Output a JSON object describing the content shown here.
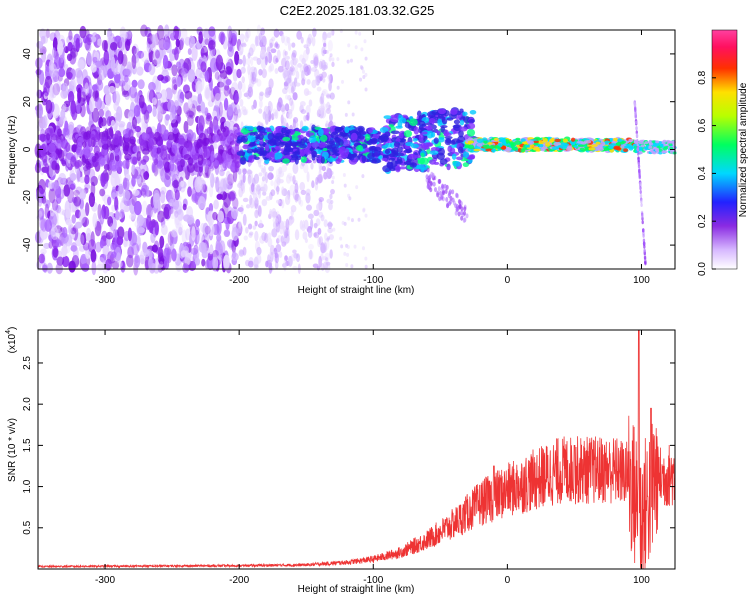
{
  "title": "C2E2.2025.181.03.32.G25",
  "chart_data": [
    {
      "type": "heatmap",
      "xlabel": "Height of straight line (km)",
      "ylabel": "Frequency (Hz)",
      "xlim": [
        -350,
        125
      ],
      "ylim": [
        -50,
        50
      ],
      "x_ticks": [
        -300,
        -200,
        -100,
        0,
        100
      ],
      "y_ticks": [
        -40,
        -20,
        0,
        20,
        40
      ],
      "colorbar": {
        "label": "Normalized spectral amplitude",
        "range": [
          0,
          1
        ],
        "ticks": [
          "0.0",
          "0.2",
          "0.4",
          "0.6",
          "0.8"
        ],
        "colormap": "white-purple-blue-cyan-green-yellow-red-magenta"
      },
      "colors": {
        "low": "#9b3bff",
        "mid": "#00e0ff",
        "high": "#ff2020"
      },
      "description_regions": [
        {
          "x_range": [
            -350,
            -200
          ],
          "level": "low",
          "freq_spread": [
            -50,
            50
          ]
        },
        {
          "x_range": [
            -200,
            -130
          ],
          "level": "low-mid",
          "freq_spread": [
            -50,
            50
          ]
        },
        {
          "x_range": [
            -130,
            -30
          ],
          "level": "mid",
          "center_freq": 2
        },
        {
          "x_range": [
            -30,
            95
          ],
          "level": "high",
          "center_freq": 2
        },
        {
          "x_range": [
            95,
            125
          ],
          "level": "mid",
          "center_freq": 1
        }
      ]
    },
    {
      "type": "line",
      "xlabel": "Height of straight line (km)",
      "ylabel": "SNR (10 * v/v)",
      "y_multiplier": "(x10",
      "y_multiplier_exp": "4",
      "xlim": [
        -350,
        125
      ],
      "ylim": [
        0,
        2.9
      ],
      "x_ticks": [
        -300,
        -200,
        -100,
        0,
        100
      ],
      "y_ticks": [
        0.5,
        1.0,
        1.5,
        2.0,
        2.5
      ],
      "color": "#ee3333",
      "envelope": [
        {
          "x": -350,
          "y": 0.03
        },
        {
          "x": -200,
          "y": 0.04
        },
        {
          "x": -150,
          "y": 0.05
        },
        {
          "x": -120,
          "y": 0.08
        },
        {
          "x": -100,
          "y": 0.12
        },
        {
          "x": -80,
          "y": 0.2
        },
        {
          "x": -60,
          "y": 0.35
        },
        {
          "x": -40,
          "y": 0.55
        },
        {
          "x": -20,
          "y": 0.8
        },
        {
          "x": 0,
          "y": 0.95
        },
        {
          "x": 20,
          "y": 1.08
        },
        {
          "x": 40,
          "y": 1.2
        },
        {
          "x": 60,
          "y": 1.2
        },
        {
          "x": 80,
          "y": 1.2
        },
        {
          "x": 90,
          "y": 1.15
        },
        {
          "x": 100,
          "y": 0.6
        },
        {
          "x": 110,
          "y": 1.1
        },
        {
          "x": 125,
          "y": 1.15
        }
      ],
      "peaks": [
        {
          "x": -10,
          "y": 1.25
        },
        {
          "x": 50,
          "y": 1.5
        },
        {
          "x": 98,
          "y": 2.9
        },
        {
          "x": 107,
          "y": 1.95
        }
      ]
    }
  ]
}
